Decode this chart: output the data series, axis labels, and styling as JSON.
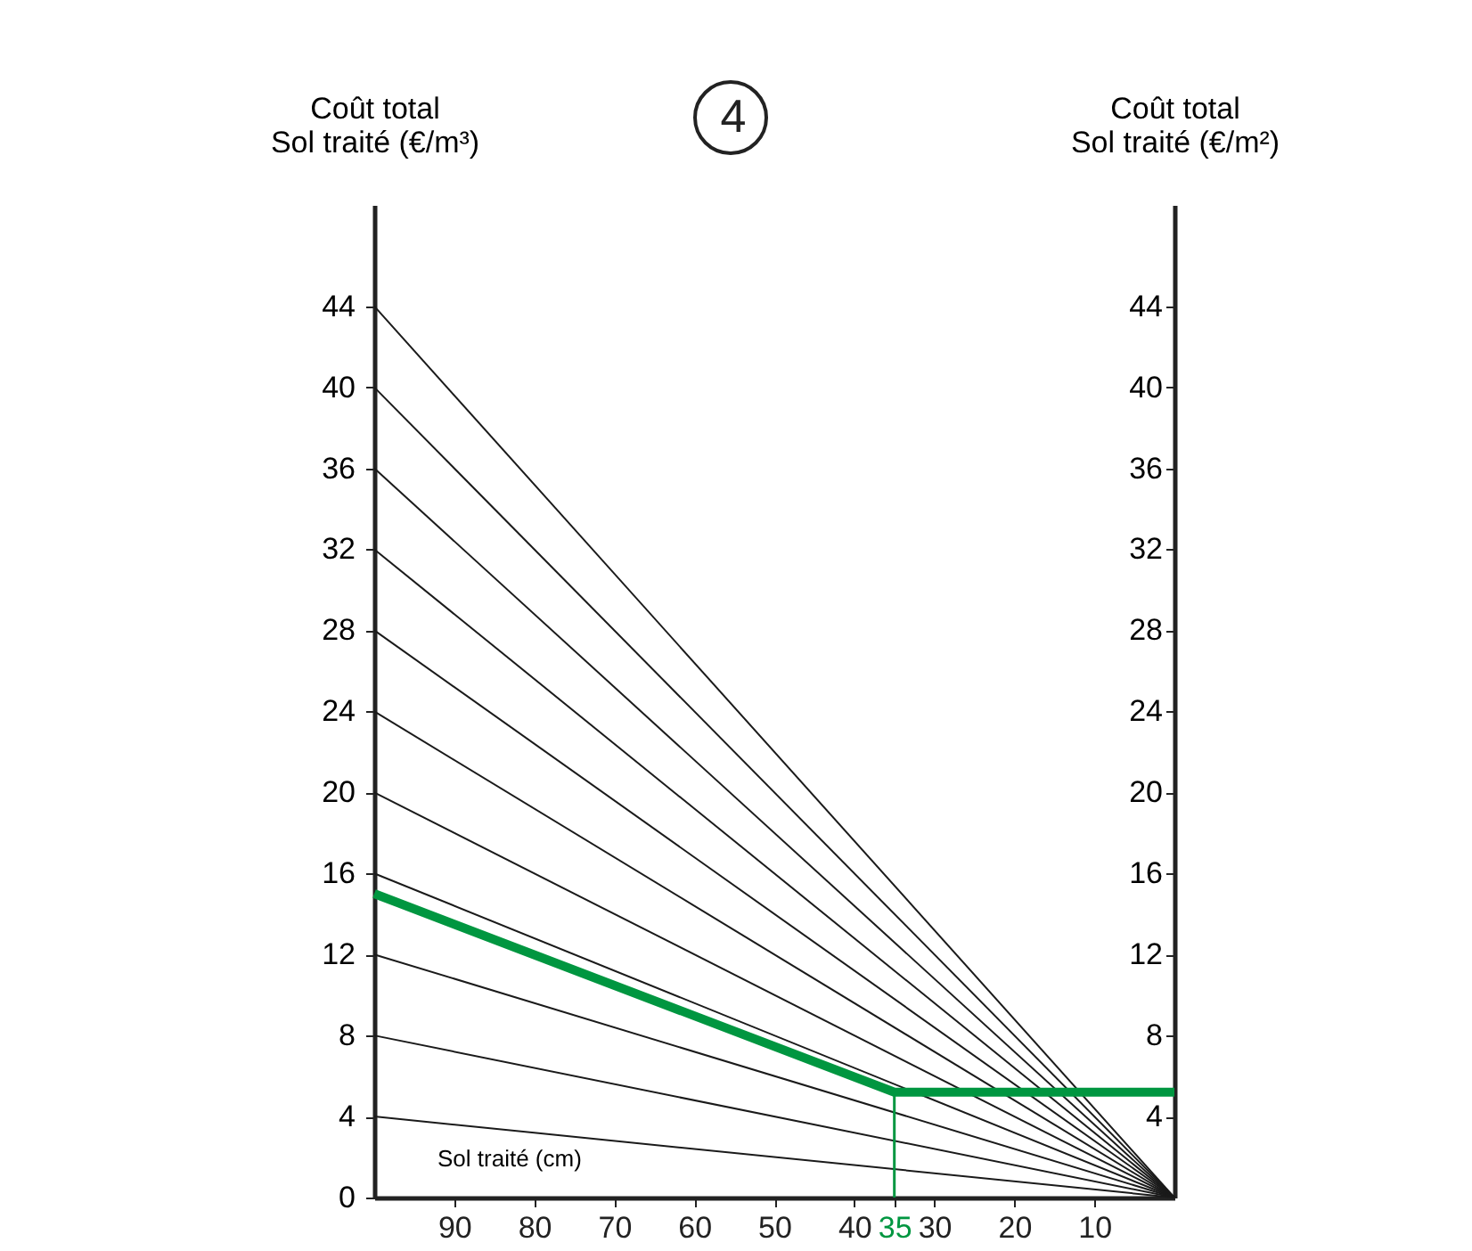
{
  "chart_data": {
    "type": "line",
    "title": "4",
    "xlabel": "Sol traité (cm)",
    "ylabel": "Coût total\nSol traité (€/m³)",
    "y2label": "Coût total\nSol traité (€/m²)",
    "xlim": [
      100,
      0
    ],
    "xticks": [
      90,
      80,
      70,
      60,
      50,
      40,
      35,
      30,
      20,
      10
    ],
    "ylim": [
      0,
      49
    ],
    "yticks": [
      0,
      4,
      8,
      12,
      16,
      20,
      24,
      28,
      32,
      36,
      40,
      44
    ],
    "y2lim": [
      0,
      49
    ],
    "y2ticks": [
      4,
      8,
      12,
      16,
      20,
      24,
      28,
      32,
      36,
      40,
      44
    ],
    "grid": false,
    "legend": false,
    "marker": "none",
    "line_style": "solid",
    "series": [
      {
        "color": "#1a1a1a",
        "x": [
          100,
          0
        ],
        "values": [
          44,
          0
        ]
      },
      {
        "color": "#1a1a1a",
        "x": [
          100,
          0
        ],
        "values": [
          40,
          0
        ]
      },
      {
        "color": "#1a1a1a",
        "x": [
          100,
          0
        ],
        "values": [
          36,
          0
        ]
      },
      {
        "color": "#1a1a1a",
        "x": [
          100,
          0
        ],
        "values": [
          32,
          0
        ]
      },
      {
        "color": "#1a1a1a",
        "x": [
          100,
          0
        ],
        "values": [
          28,
          0
        ]
      },
      {
        "color": "#1a1a1a",
        "x": [
          100,
          0
        ],
        "values": [
          24,
          0
        ]
      },
      {
        "color": "#1a1a1a",
        "x": [
          100,
          0
        ],
        "values": [
          20,
          0
        ]
      },
      {
        "color": "#1a1a1a",
        "x": [
          100,
          0
        ],
        "values": [
          16,
          0
        ]
      },
      {
        "color": "#1a1a1a",
        "x": [
          100,
          0
        ],
        "values": [
          12,
          0
        ]
      },
      {
        "color": "#1a1a1a",
        "x": [
          100,
          0
        ],
        "values": [
          8,
          0
        ]
      },
      {
        "color": "#1a1a1a",
        "x": [
          100,
          0
        ],
        "values": [
          4,
          0
        ]
      },
      {
        "color": "#009640",
        "x": [
          35,
          35
        ],
        "values": [
          0,
          5.2
        ]
      },
      {
        "color": "#009640",
        "x": [
          100,
          35,
          0
        ],
        "values": [
          15,
          5.2,
          5.2
        ],
        "axis": "y2"
      }
    ]
  }
}
